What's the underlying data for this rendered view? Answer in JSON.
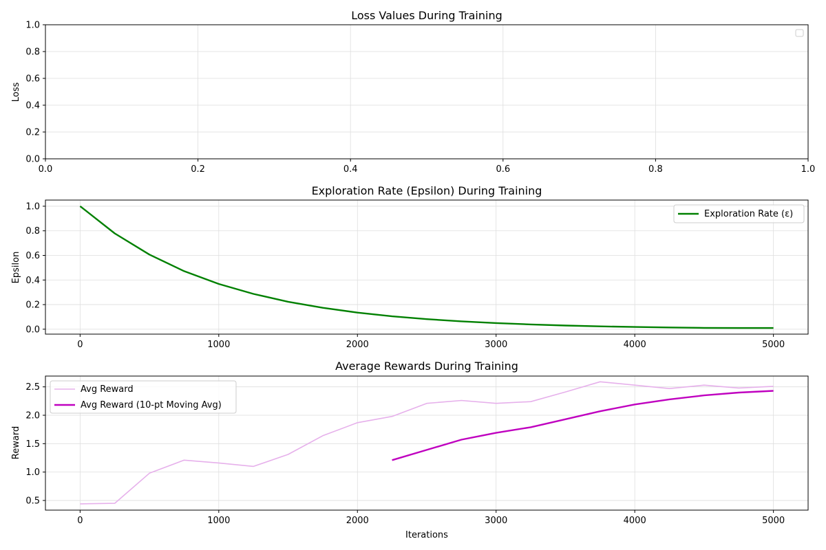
{
  "chart_data": [
    {
      "type": "line",
      "title": "Loss Values During Training",
      "xlabel": "",
      "ylabel": "Loss",
      "xlim": [
        0,
        1
      ],
      "ylim": [
        0,
        1
      ],
      "x_ticks": [
        "0.0",
        "0.2",
        "0.4",
        "0.6",
        "0.8",
        "1.0"
      ],
      "y_ticks": [
        "0.0",
        "0.2",
        "0.4",
        "0.6",
        "0.8",
        "1.0"
      ],
      "grid": true,
      "legend_position": "top-right",
      "series": []
    },
    {
      "type": "line",
      "title": "Exploration Rate (Epsilon) During Training",
      "xlabel": "",
      "ylabel": "Epsilon",
      "xlim": [
        -250,
        5250
      ],
      "ylim": [
        -0.04,
        1.05
      ],
      "x_ticks": [
        "0",
        "1000",
        "2000",
        "3000",
        "4000",
        "5000"
      ],
      "y_ticks": [
        "0.0",
        "0.2",
        "0.4",
        "0.6",
        "0.8",
        "1.0"
      ],
      "grid": true,
      "legend_position": "top-right",
      "series": [
        {
          "name": "Exploration Rate (ε)",
          "color": "#008000",
          "x": [
            0,
            250,
            500,
            750,
            1000,
            1250,
            1500,
            1750,
            2000,
            2250,
            2500,
            2750,
            3000,
            3250,
            3500,
            3750,
            4000,
            4250,
            4500,
            4750,
            5000
          ],
          "y": [
            1.0,
            0.779,
            0.607,
            0.472,
            0.368,
            0.287,
            0.223,
            0.174,
            0.135,
            0.105,
            0.082,
            0.064,
            0.05,
            0.039,
            0.03,
            0.023,
            0.018,
            0.014,
            0.011,
            0.01,
            0.01
          ]
        }
      ]
    },
    {
      "type": "line",
      "title": "Average Rewards During Training",
      "xlabel": "Iterations",
      "ylabel": "Reward",
      "xlim": [
        -250,
        5250
      ],
      "ylim": [
        0.33,
        2.69
      ],
      "x_ticks": [
        "0",
        "1000",
        "2000",
        "3000",
        "4000",
        "5000"
      ],
      "y_ticks": [
        "0.5",
        "1.0",
        "1.5",
        "2.0",
        "2.5"
      ],
      "grid": true,
      "legend_position": "top-left",
      "series": [
        {
          "name": "Avg Reward",
          "color": "#e6b0eb",
          "x": [
            0,
            250,
            500,
            750,
            1000,
            1250,
            1500,
            1750,
            2000,
            2250,
            2500,
            2750,
            3000,
            3250,
            3500,
            3750,
            4000,
            4250,
            4500,
            4750,
            5000
          ],
          "y": [
            0.44,
            0.45,
            0.98,
            1.21,
            1.16,
            1.1,
            1.31,
            1.64,
            1.87,
            1.98,
            2.21,
            2.26,
            2.21,
            2.24,
            2.41,
            2.59,
            2.53,
            2.47,
            2.53,
            2.48,
            2.51
          ]
        },
        {
          "name": "Avg Reward (10-pt Moving Avg)",
          "color": "#bf00bf",
          "x": [
            2250,
            2500,
            2750,
            3000,
            3250,
            3500,
            3750,
            4000,
            4250,
            4500,
            4750,
            5000
          ],
          "y": [
            1.21,
            1.39,
            1.57,
            1.69,
            1.79,
            1.93,
            2.07,
            2.19,
            2.28,
            2.35,
            2.4,
            2.43
          ]
        }
      ]
    }
  ]
}
